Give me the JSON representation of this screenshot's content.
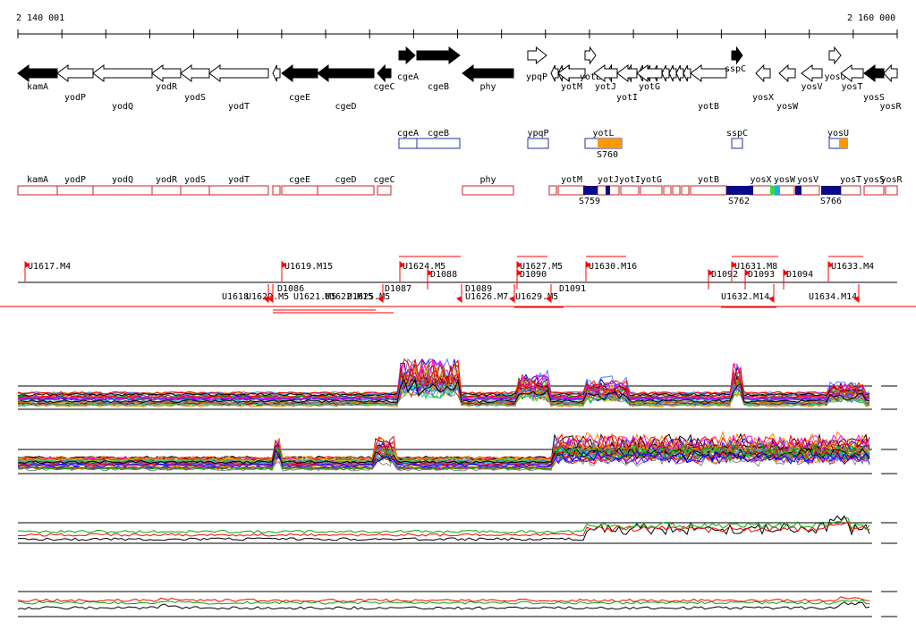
{
  "ruler": {
    "start_label": "2 140 001",
    "end_label": "2 160 000"
  },
  "colors": {
    "gene_fill": "#000000",
    "outline": "#000000",
    "blue_box": "#2233aa",
    "red_box": "#cc2222",
    "orange": "#ff9900",
    "navy": "#0a0a88",
    "green": "#33dd33",
    "cyan": "#22aaff",
    "tu_red": "#ff0000",
    "divider": "#ee0000"
  },
  "genes": [
    {
      "name": "kamA",
      "label_row": 1,
      "filled": true,
      "strand": "-"
    },
    {
      "name": "yodP",
      "label_row": 2,
      "filled": false,
      "strand": "-"
    },
    {
      "name": "yodQ",
      "label_row": 3,
      "filled": false,
      "strand": "-"
    },
    {
      "name": "yodR",
      "label_row": 1,
      "filled": false,
      "strand": "-"
    },
    {
      "name": "yodS",
      "label_row": 2,
      "filled": false,
      "strand": "-"
    },
    {
      "name": "yodT",
      "label_row": 3,
      "filled": false,
      "strand": "-"
    },
    {
      "name": "cgeE",
      "label_row": 2,
      "filled": true,
      "strand": "-"
    },
    {
      "name": "cgeD",
      "label_row": 3,
      "filled": true,
      "strand": "-"
    },
    {
      "name": "cgeC",
      "label_row": 1,
      "filled": true,
      "strand": "-"
    },
    {
      "name": "cgeA",
      "label_row": 0,
      "filled": true,
      "strand": "+"
    },
    {
      "name": "cgeB",
      "label_row": 1,
      "filled": true,
      "strand": "+"
    },
    {
      "name": "phy",
      "label_row": 1,
      "filled": true,
      "strand": "-"
    },
    {
      "name": "ypqP",
      "label_row": 0,
      "filled": false,
      "strand": "+"
    },
    {
      "name": "yotM",
      "label_row": 1,
      "filled": false,
      "strand": "-"
    },
    {
      "name": "yotL",
      "label_row": 0,
      "filled": false,
      "strand": "+"
    },
    {
      "name": "yotJ",
      "label_row": 1,
      "filled": false,
      "strand": "-"
    },
    {
      "name": "yotI",
      "label_row": 2,
      "filled": false,
      "strand": "-"
    },
    {
      "name": "yotG",
      "label_row": 1,
      "filled": false,
      "strand": "-"
    },
    {
      "name": "yotB",
      "label_row": 3,
      "filled": false,
      "strand": "-"
    },
    {
      "name": "sspC",
      "label_row": 0,
      "filled": true,
      "strand": "+"
    },
    {
      "name": "yosX",
      "label_row": 2,
      "filled": false,
      "strand": "-"
    },
    {
      "name": "yosW",
      "label_row": 3,
      "filled": false,
      "strand": "-"
    },
    {
      "name": "yosV",
      "label_row": 1,
      "filled": false,
      "strand": "-"
    },
    {
      "name": "yosU",
      "label_row": 1,
      "filled": false,
      "strand": "+"
    },
    {
      "name": "yosT",
      "label_row": 1,
      "filled": false,
      "strand": "-"
    },
    {
      "name": "yosS",
      "label_row": 2,
      "filled": true,
      "strand": "-"
    },
    {
      "name": "yosR",
      "label_row": 3,
      "filled": false,
      "strand": "-"
    }
  ],
  "plus_strand_boxes": [
    {
      "name": "cgeA"
    },
    {
      "name": "cgeB"
    },
    {
      "name": "ypqP"
    },
    {
      "name": "yotL"
    },
    {
      "name": "sspC"
    },
    {
      "name": "yosU"
    }
  ],
  "plus_strand_labels": [
    "S760"
  ],
  "minus_strand_boxes": [
    {
      "name": "kamA"
    },
    {
      "name": "yodP"
    },
    {
      "name": "yodQ"
    },
    {
      "name": "yodR"
    },
    {
      "name": "yodS"
    },
    {
      "name": "yodT"
    },
    {
      "name": "cgeE"
    },
    {
      "name": "cgeD"
    },
    {
      "name": "cgeC"
    },
    {
      "name": "phy"
    },
    {
      "name": "yotM"
    },
    {
      "name": "yotJ"
    },
    {
      "name": "yotI"
    },
    {
      "name": "yotG"
    },
    {
      "name": "yotB"
    },
    {
      "name": "yosX"
    },
    {
      "name": "yosW"
    },
    {
      "name": "yosV"
    },
    {
      "name": "yosT"
    },
    {
      "name": "yosS"
    },
    {
      "name": "yosR"
    }
  ],
  "minus_strand_labels": [
    "S759",
    "S762",
    "S766"
  ],
  "transcription_units_upper": [
    "U1617.M4",
    "U1619.M15",
    "U1624.M5",
    "D1088",
    "U1627.M5",
    "D1090",
    "U1630.M16",
    "D1092",
    "U1631.M8",
    "D1093",
    "D1094",
    "U1633.M4"
  ],
  "transcription_units_lower": [
    "U1618",
    "U1620.M5",
    "D1086",
    "U1621.M5",
    "U1622.M15",
    "U1625.M5",
    "D1087",
    "D1089",
    "U1626.M7",
    "U1629.M5",
    "D1091",
    "U1632.M14",
    "U1634.M14"
  ]
}
